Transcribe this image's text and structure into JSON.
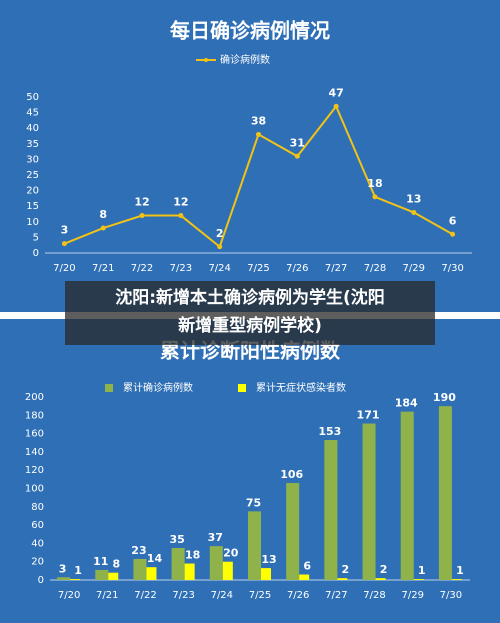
{
  "chart_data": [
    {
      "type": "line",
      "title": "每日确诊病例情况",
      "categories": [
        "7/20",
        "7/21",
        "7/22",
        "7/23",
        "7/24",
        "7/25",
        "7/26",
        "7/27",
        "7/28",
        "7/29",
        "7/30"
      ],
      "series": [
        {
          "name": "确诊病例数",
          "color": "#f2c314",
          "values": [
            3,
            8,
            12,
            12,
            2,
            38,
            31,
            47,
            18,
            13,
            6
          ]
        }
      ],
      "ylim": [
        0,
        50
      ],
      "yticks": [
        0,
        5,
        10,
        15,
        20,
        25,
        30,
        35,
        40,
        45,
        50
      ]
    },
    {
      "type": "bar",
      "title": "累计诊断阳性病例数",
      "categories": [
        "7/20",
        "7/21",
        "7/22",
        "7/23",
        "7/24",
        "7/25",
        "7/26",
        "7/27",
        "7/28",
        "7/29",
        "7/30"
      ],
      "series": [
        {
          "name": "累计确诊病例数",
          "color": "#8fb24a",
          "values": [
            3,
            11,
            23,
            35,
            37,
            75,
            106,
            153,
            171,
            184,
            190
          ]
        },
        {
          "name": "累计无症状感染者数",
          "color": "#ffff00",
          "values": [
            1,
            8,
            14,
            18,
            20,
            13,
            6,
            2,
            2,
            1,
            1
          ]
        }
      ],
      "ylim": [
        0,
        200
      ],
      "yticks": [
        0,
        20,
        40,
        60,
        80,
        100,
        120,
        140,
        160,
        180,
        200
      ]
    }
  ],
  "caption": {
    "lines": [
      "沈阳:新增本土确诊病例为学生(沈阳",
      "新增重型病例学校)"
    ]
  }
}
